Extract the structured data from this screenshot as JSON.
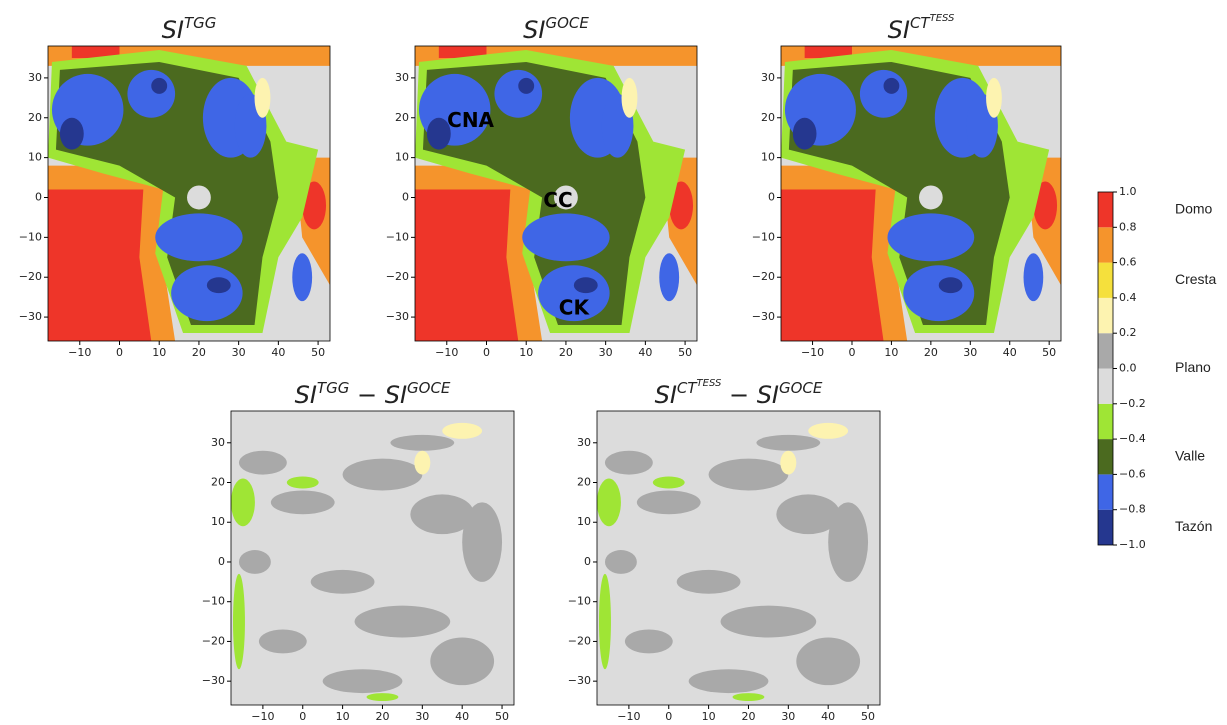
{
  "chart_data": [
    {
      "type": "heatmap",
      "title": [
        {
          "text": "SI",
          "level": 0
        },
        {
          "text": "TGG",
          "level": 1
        }
      ],
      "xlim": [
        -18,
        53
      ],
      "ylim": [
        -36,
        38
      ],
      "xticks": [
        {
          "value": -10,
          "label": "−10"
        },
        0,
        10,
        20,
        30,
        40,
        50
      ],
      "yticks": [
        {
          "value": -30,
          "label": "−30"
        },
        {
          "value": -20,
          "label": "−20"
        },
        {
          "value": -10,
          "label": "−10"
        },
        0,
        10,
        20,
        30
      ]
    },
    {
      "type": "heatmap",
      "title": [
        {
          "text": "SI",
          "level": 0
        },
        {
          "text": "GOCE",
          "level": 1
        }
      ],
      "xlim": [
        -18,
        53
      ],
      "ylim": [
        -36,
        38
      ],
      "xticks": [
        {
          "value": -10,
          "label": "−10"
        },
        0,
        10,
        20,
        30,
        40,
        50
      ],
      "yticks": [
        {
          "value": -30,
          "label": "−30"
        },
        {
          "value": -20,
          "label": "−20"
        },
        {
          "value": -10,
          "label": "−10"
        },
        0,
        10,
        20,
        30
      ],
      "annotations": [
        {
          "text": "CNA",
          "x": -4,
          "y": 19
        },
        {
          "text": "CC",
          "x": 18,
          "y": -1
        },
        {
          "text": "CK",
          "x": 22,
          "y": -28
        }
      ]
    },
    {
      "type": "heatmap",
      "title": [
        {
          "text": "SI",
          "level": 0
        },
        {
          "text": "CT",
          "level": 1
        },
        {
          "text": "TESS",
          "level": 2
        }
      ],
      "xlim": [
        -18,
        53
      ],
      "ylim": [
        -36,
        38
      ],
      "xticks": [
        {
          "value": -10,
          "label": "−10"
        },
        0,
        10,
        20,
        30,
        40,
        50
      ],
      "yticks": [
        {
          "value": -30,
          "label": "−30"
        },
        {
          "value": -20,
          "label": "−20"
        },
        {
          "value": -10,
          "label": "−10"
        },
        0,
        10,
        20,
        30
      ]
    },
    {
      "type": "difference",
      "title": [
        {
          "text": "SI",
          "level": 0
        },
        {
          "text": "TGG",
          "level": 1
        },
        {
          "text": " − ",
          "level": 0
        },
        {
          "text": "SI",
          "level": 0
        },
        {
          "text": "GOCE",
          "level": 1
        }
      ],
      "xlim": [
        -18,
        53
      ],
      "ylim": [
        -36,
        38
      ],
      "xticks": [
        {
          "value": -10,
          "label": "−10"
        },
        0,
        10,
        20,
        30,
        40,
        50
      ],
      "yticks": [
        {
          "value": -30,
          "label": "−30"
        },
        {
          "value": -20,
          "label": "−20"
        },
        {
          "value": -10,
          "label": "−10"
        },
        0,
        10,
        20,
        30
      ]
    },
    {
      "type": "difference",
      "title": [
        {
          "text": "SI",
          "level": 0
        },
        {
          "text": "CT",
          "level": 1
        },
        {
          "text": "TESS",
          "level": 2
        },
        {
          "text": " − ",
          "level": 0
        },
        {
          "text": "SI",
          "level": 0
        },
        {
          "text": "GOCE",
          "level": 1
        }
      ],
      "xlim": [
        -18,
        53
      ],
      "ylim": [
        -36,
        38
      ],
      "xticks": [
        {
          "value": -10,
          "label": "−10"
        },
        0,
        10,
        20,
        30,
        40,
        50
      ],
      "yticks": [
        {
          "value": -30,
          "label": "−30"
        },
        {
          "value": -20,
          "label": "−20"
        },
        {
          "value": -10,
          "label": "−10"
        },
        0,
        10,
        20,
        30
      ]
    },
    {
      "type": "colorbar",
      "ticks": [
        {
          "value": -1,
          "label": "−1.0"
        },
        {
          "value": -0.8,
          "label": "−0.8"
        },
        {
          "value": -0.6,
          "label": "−0.6"
        },
        {
          "value": -0.4,
          "label": "−0.4"
        },
        {
          "value": -0.2,
          "label": "−0.2"
        },
        {
          "value": 0,
          "label": "0.0"
        },
        {
          "value": 0.2,
          "label": "0.2"
        },
        {
          "value": 0.4,
          "label": "0.4"
        },
        {
          "value": 0.6,
          "label": "0.6"
        },
        {
          "value": 0.8,
          "label": "0.8"
        },
        {
          "value": 1,
          "label": "1.0"
        }
      ],
      "colors": [
        "#25378f",
        "#3f66e6",
        "#4b6a1f",
        "#9fe535",
        "#dcdcdc",
        "#a9a9a9",
        "#fdf3b0",
        "#f5e03c",
        "#f5942c",
        "#ee3529"
      ],
      "classes": [
        {
          "label": "Tazón",
          "value": -0.9
        },
        {
          "label": "Valle",
          "value": -0.5
        },
        {
          "label": "Plano",
          "value": 0
        },
        {
          "label": "Cresta",
          "value": 0.5
        },
        {
          "label": "Domo",
          "value": 0.9
        }
      ]
    }
  ]
}
